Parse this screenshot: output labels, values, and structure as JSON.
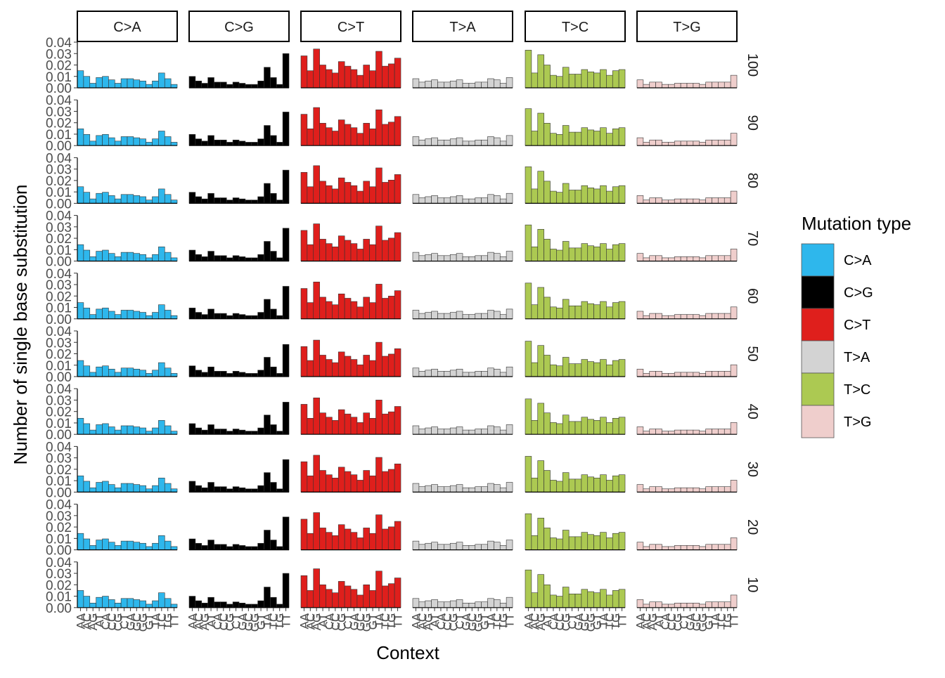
{
  "chart_data": {
    "type": "bar",
    "title": "",
    "xlabel": "Context",
    "ylabel": "Number of single base substitution",
    "ylim": [
      0,
      0.04
    ],
    "yticks": [
      "0.00",
      "0.01",
      "0.02",
      "0.03",
      "0.04"
    ],
    "categories": [
      "AA",
      "AC",
      "AG",
      "AT",
      "CA",
      "CC",
      "CG",
      "CT",
      "GA",
      "GC",
      "GG",
      "GT",
      "TA",
      "TC",
      "TG",
      "TT"
    ],
    "columns": [
      "C>A",
      "C>G",
      "C>T",
      "T>A",
      "T>C",
      "T>G"
    ],
    "rows": [
      "100",
      "90",
      "80",
      "70",
      "60",
      "50",
      "40",
      "30",
      "20",
      "10"
    ],
    "legend": {
      "title": "Mutation type",
      "placement": "right",
      "items": [
        {
          "label": "C>A",
          "color": "#2EB7EC"
        },
        {
          "label": "C>G",
          "color": "#000000"
        },
        {
          "label": "C>T",
          "color": "#DF1F1C"
        },
        {
          "label": "T>A",
          "color": "#D3D3D3"
        },
        {
          "label": "T>C",
          "color": "#ACC952"
        },
        {
          "label": "T>G",
          "color": "#EFCECC"
        }
      ]
    },
    "base_profile": {
      "C>A": [
        0.015,
        0.01,
        0.004,
        0.009,
        0.01,
        0.007,
        0.004,
        0.008,
        0.008,
        0.007,
        0.006,
        0.003,
        0.006,
        0.013,
        0.008,
        0.003
      ],
      "C>G": [
        0.01,
        0.006,
        0.004,
        0.009,
        0.005,
        0.005,
        0.003,
        0.005,
        0.004,
        0.003,
        0.003,
        0.006,
        0.018,
        0.009,
        0.003,
        0.03
      ],
      "C>T": [
        0.028,
        0.015,
        0.034,
        0.02,
        0.016,
        0.013,
        0.023,
        0.019,
        0.016,
        0.011,
        0.02,
        0.015,
        0.032,
        0.019,
        0.021,
        0.026
      ],
      "T>A": [
        0.008,
        0.005,
        0.006,
        0.007,
        0.005,
        0.005,
        0.006,
        0.007,
        0.004,
        0.004,
        0.005,
        0.005,
        0.008,
        0.007,
        0.004,
        0.009
      ],
      "T>C": [
        0.033,
        0.013,
        0.029,
        0.02,
        0.011,
        0.01,
        0.018,
        0.012,
        0.012,
        0.016,
        0.014,
        0.013,
        0.016,
        0.011,
        0.015,
        0.016
      ],
      "T>G": [
        0.007,
        0.003,
        0.005,
        0.005,
        0.003,
        0.003,
        0.004,
        0.004,
        0.004,
        0.004,
        0.003,
        0.005,
        0.005,
        0.005,
        0.005,
        0.011
      ]
    },
    "row_scale": [
      1.0,
      0.98,
      0.97,
      0.96,
      0.95,
      0.94,
      0.94,
      0.95,
      0.96,
      1.0
    ],
    "grid": false
  }
}
